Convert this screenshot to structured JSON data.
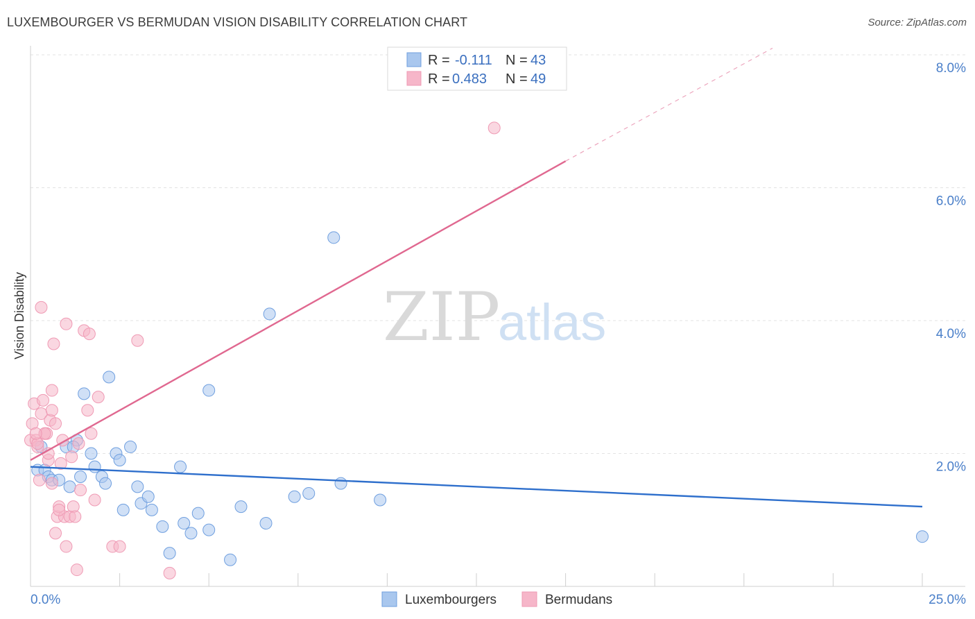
{
  "title": "LUXEMBOURGER VS BERMUDAN VISION DISABILITY CORRELATION CHART",
  "source": "Source: ZipAtlas.com",
  "watermark": {
    "zip": "ZIP",
    "atlas": "atlas"
  },
  "legend_top": [
    {
      "r_label": "R =",
      "r_value": "-0.111",
      "n_label": "N =",
      "n_value": "43",
      "color": "#a9c7ee"
    },
    {
      "r_label": "R =",
      "r_value": "0.483",
      "n_label": "N =",
      "n_value": "49",
      "color": "#f6b6c9"
    }
  ],
  "legend_bottom": [
    "Luxembourgers",
    "Bermudans"
  ],
  "chart_data": {
    "type": "scatter",
    "title": "LUXEMBOURGER VS BERMUDAN VISION DISABILITY CORRELATION CHART",
    "xlabel": "",
    "ylabel": "Vision Disability",
    "xlim": [
      0,
      25
    ],
    "ylim": [
      0,
      8.2
    ],
    "x_tick_labels": [
      "0.0%",
      "25.0%"
    ],
    "y_ticks": [
      2,
      4,
      6,
      8
    ],
    "y_tick_labels": [
      "2.0%",
      "4.0%",
      "6.0%",
      "8.0%"
    ],
    "grid": true,
    "series": [
      {
        "name": "Luxembourgers",
        "color": "#6f9fdf",
        "fill": "#a9c7ee",
        "trend": {
          "x": [
            0,
            25
          ],
          "y": [
            1.8,
            1.2
          ],
          "color": "#2e6fcc"
        },
        "points": [
          [
            0.2,
            1.75
          ],
          [
            0.4,
            1.75
          ],
          [
            0.5,
            1.65
          ],
          [
            0.6,
            1.6
          ],
          [
            0.8,
            1.6
          ],
          [
            1.0,
            2.1
          ],
          [
            1.1,
            1.5
          ],
          [
            1.3,
            2.2
          ],
          [
            1.4,
            1.65
          ],
          [
            1.5,
            2.9
          ],
          [
            1.7,
            2.0
          ],
          [
            1.8,
            1.8
          ],
          [
            2.0,
            1.65
          ],
          [
            2.1,
            1.55
          ],
          [
            2.2,
            3.15
          ],
          [
            2.4,
            2.0
          ],
          [
            2.5,
            1.9
          ],
          [
            2.6,
            1.15
          ],
          [
            2.8,
            2.1
          ],
          [
            3.0,
            1.5
          ],
          [
            3.1,
            1.25
          ],
          [
            3.3,
            1.35
          ],
          [
            3.4,
            1.15
          ],
          [
            3.7,
            0.9
          ],
          [
            3.9,
            0.5
          ],
          [
            4.2,
            1.8
          ],
          [
            4.3,
            0.95
          ],
          [
            4.5,
            0.8
          ],
          [
            4.7,
            1.1
          ],
          [
            5.0,
            0.85
          ],
          [
            5.0,
            2.95
          ],
          [
            5.6,
            0.4
          ],
          [
            5.9,
            1.2
          ],
          [
            6.6,
            0.95
          ],
          [
            6.7,
            4.1
          ],
          [
            7.4,
            1.35
          ],
          [
            7.8,
            1.4
          ],
          [
            8.5,
            5.25
          ],
          [
            8.7,
            1.55
          ],
          [
            9.8,
            1.3
          ],
          [
            25.0,
            0.75
          ],
          [
            0.3,
            2.1
          ],
          [
            1.2,
            2.1
          ]
        ]
      },
      {
        "name": "Bermudans",
        "color": "#ef9ab4",
        "fill": "#f6b6c9",
        "trend": {
          "x": [
            0,
            15
          ],
          "y": [
            1.9,
            6.4
          ],
          "dash_x": [
            15,
            20.8
          ],
          "dash_y": [
            6.4,
            8.1
          ],
          "color": "#e06890"
        },
        "points": [
          [
            0.0,
            2.2
          ],
          [
            0.05,
            2.45
          ],
          [
            0.1,
            2.75
          ],
          [
            0.15,
            2.2
          ],
          [
            0.2,
            2.1
          ],
          [
            0.25,
            1.6
          ],
          [
            0.3,
            2.6
          ],
          [
            0.3,
            4.2
          ],
          [
            0.35,
            2.8
          ],
          [
            0.4,
            2.3
          ],
          [
            0.45,
            2.3
          ],
          [
            0.5,
            1.9
          ],
          [
            0.55,
            2.5
          ],
          [
            0.6,
            2.95
          ],
          [
            0.6,
            2.65
          ],
          [
            0.6,
            1.55
          ],
          [
            0.65,
            3.65
          ],
          [
            0.7,
            2.45
          ],
          [
            0.7,
            0.8
          ],
          [
            0.75,
            1.05
          ],
          [
            0.8,
            1.2
          ],
          [
            0.85,
            1.85
          ],
          [
            0.9,
            2.2
          ],
          [
            0.95,
            1.05
          ],
          [
            1.0,
            0.6
          ],
          [
            1.0,
            3.95
          ],
          [
            1.1,
            1.05
          ],
          [
            1.15,
            1.95
          ],
          [
            1.2,
            1.2
          ],
          [
            1.3,
            0.25
          ],
          [
            1.35,
            2.15
          ],
          [
            1.4,
            1.45
          ],
          [
            1.5,
            3.85
          ],
          [
            1.6,
            2.65
          ],
          [
            1.65,
            3.8
          ],
          [
            1.7,
            2.3
          ],
          [
            1.8,
            1.3
          ],
          [
            1.9,
            2.85
          ],
          [
            2.3,
            0.6
          ],
          [
            2.5,
            0.6
          ],
          [
            3.0,
            3.7
          ],
          [
            3.9,
            0.2
          ],
          [
            13.0,
            6.9
          ],
          [
            0.2,
            2.15
          ],
          [
            0.4,
            2.3
          ],
          [
            0.5,
            2.0
          ],
          [
            0.8,
            1.15
          ],
          [
            1.25,
            1.05
          ],
          [
            0.15,
            2.3
          ]
        ]
      }
    ]
  }
}
